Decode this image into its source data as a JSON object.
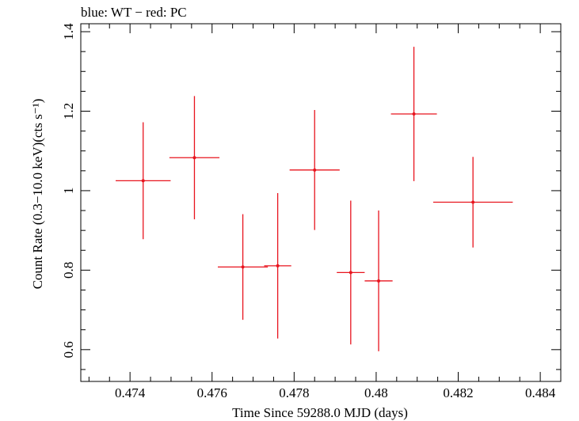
{
  "header": {
    "text": "blue: WT − red: PC"
  },
  "chart_data": {
    "type": "scatter",
    "title": "",
    "xlabel": "Time Since 59288.0 MJD (days)",
    "ylabel": "Count Rate (0.3−10.0 keV)(cts s⁻¹)",
    "xlim": [
      0.4728,
      0.4845
    ],
    "ylim": [
      0.52,
      1.42
    ],
    "xticks": [
      0.474,
      0.476,
      0.478,
      0.48,
      0.482,
      0.484
    ],
    "xtick_labels": [
      "0.474",
      "0.476",
      "0.478",
      "0.48",
      "0.482",
      "0.484"
    ],
    "yticks": [
      0.6,
      0.8,
      1.0,
      1.2,
      1.4
    ],
    "ytick_labels": [
      "0.6",
      "0.8",
      "1",
      "1.2",
      "1.4"
    ],
    "grid": false,
    "series": [
      {
        "color": "#e8141e",
        "points": [
          {
            "x": 0.47432,
            "y": 1.025,
            "xerr": 0.00067,
            "yerr_low": 0.147,
            "yerr_high": 0.147
          },
          {
            "x": 0.47557,
            "y": 1.083,
            "xerr": 0.00061,
            "yerr_low": 0.155,
            "yerr_high": 0.155
          },
          {
            "x": 0.47675,
            "y": 0.808,
            "xerr": 0.00061,
            "yerr_low": 0.133,
            "yerr_high": 0.133
          },
          {
            "x": 0.4776,
            "y": 0.811,
            "xerr": 0.00033,
            "yerr_low": 0.183,
            "yerr_high": 0.183
          },
          {
            "x": 0.4785,
            "y": 1.052,
            "xerr": 0.00061,
            "yerr_low": 0.151,
            "yerr_high": 0.151
          },
          {
            "x": 0.47938,
            "y": 0.794,
            "xerr": 0.00034,
            "yerr_low": 0.181,
            "yerr_high": 0.181
          },
          {
            "x": 0.48006,
            "y": 0.773,
            "xerr": 0.00034,
            "yerr_low": 0.177,
            "yerr_high": 0.177
          },
          {
            "x": 0.48092,
            "y": 1.193,
            "xerr": 0.00056,
            "yerr_low": 0.169,
            "yerr_high": 0.169
          },
          {
            "x": 0.48236,
            "y": 0.971,
            "xerr": 0.00097,
            "yerr_low": 0.114,
            "yerr_high": 0.114
          }
        ]
      }
    ]
  }
}
